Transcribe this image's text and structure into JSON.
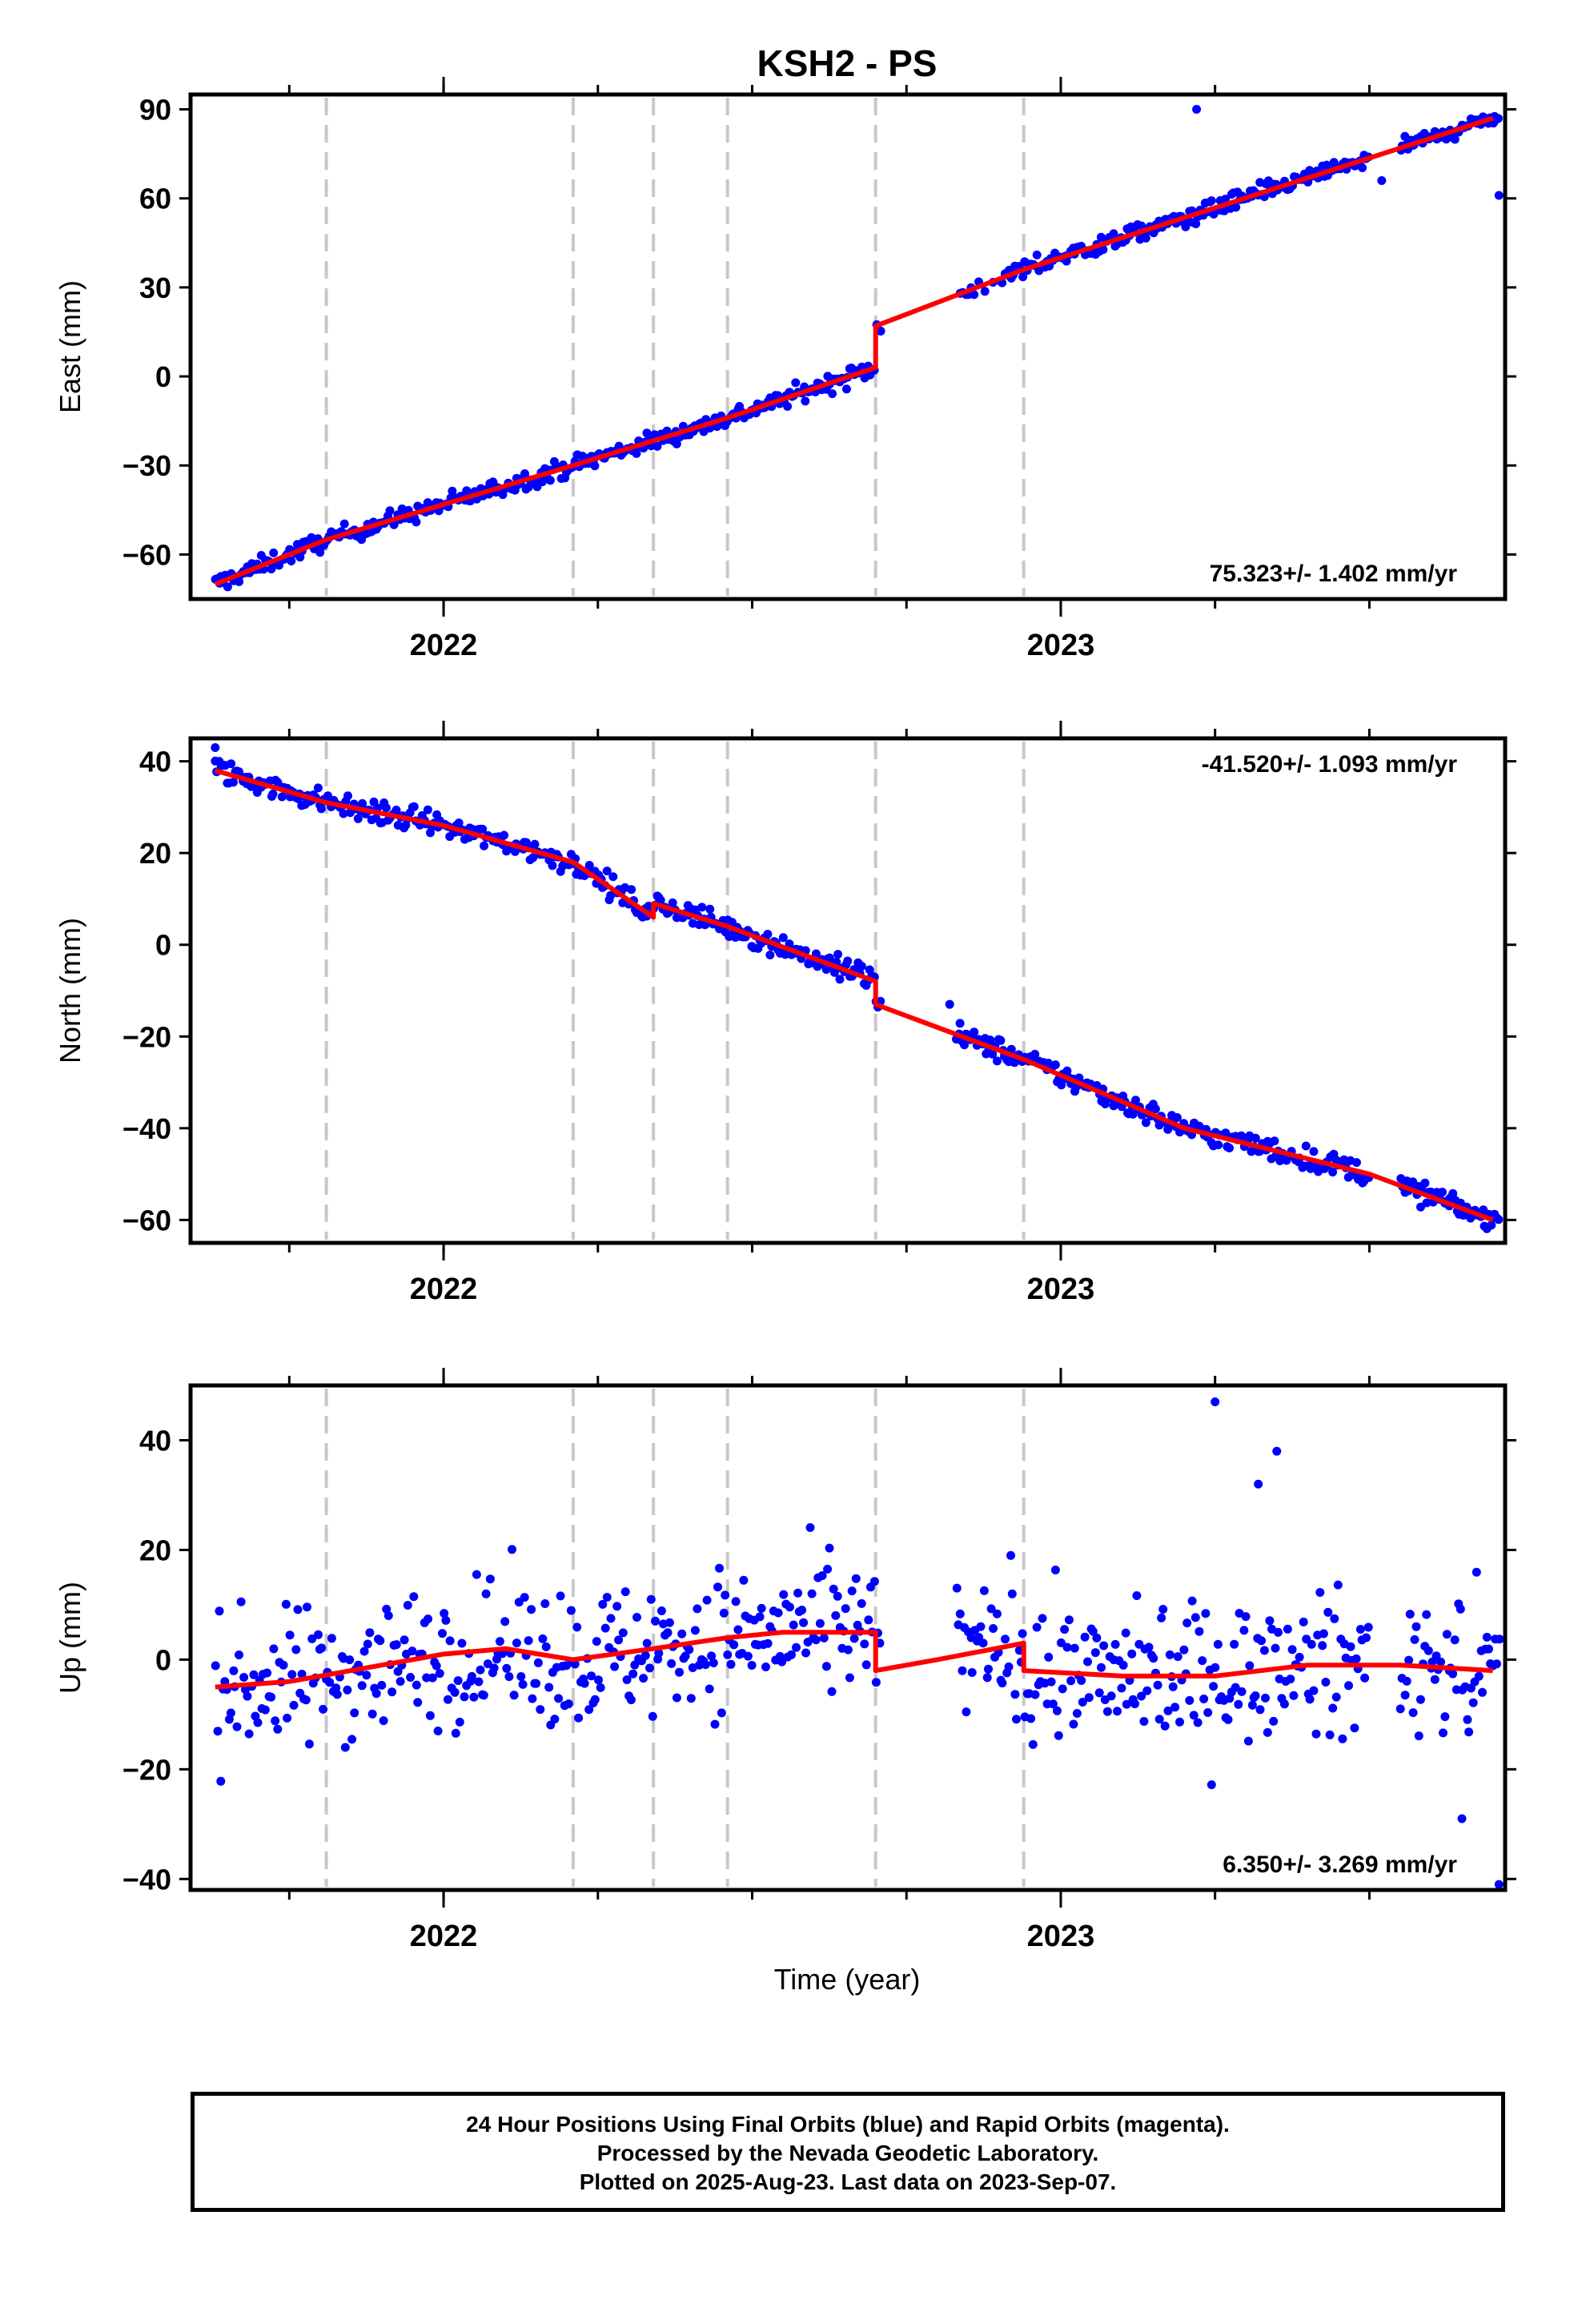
{
  "title": "KSH2 - PS",
  "xaxis_label": "Time (year)",
  "colors": {
    "final_orbits": "#0000ff",
    "model_fit": "#ff0000",
    "offset_lines": "#c8c8c8",
    "frame": "#000000"
  },
  "chart_data": [
    {
      "type": "scatter",
      "panel": "east",
      "ylabel": "East (mm)",
      "xlim": [
        2021.59,
        2023.72
      ],
      "ylim": [
        -75,
        95
      ],
      "yticks": [
        -60,
        -30,
        0,
        30,
        60,
        90
      ],
      "xtick_labels": [
        "2022",
        "2023"
      ],
      "xticks": [
        2022,
        2023
      ],
      "offset_epochs": [
        2021.81,
        2022.21,
        2022.34,
        2022.46,
        2022.7,
        2022.94
      ],
      "rate_label": "75.323+/- 1.402 mm/yr",
      "rate_label_position": "bottom-right",
      "model_fit": [
        [
          2021.63,
          -70
        ],
        [
          2021.81,
          -55
        ],
        [
          2022.21,
          -30
        ],
        [
          2022.46,
          -14
        ],
        [
          2022.7,
          3
        ],
        [
          2022.7,
          17
        ],
        [
          2022.94,
          36
        ],
        [
          2023.7,
          87
        ]
      ],
      "outliers": [
        [
          2023.22,
          90
        ],
        [
          2023.52,
          66
        ],
        [
          2023.71,
          61
        ]
      ],
      "series": [
        {
          "values": [
            [
              2021.63,
              -69
            ],
            [
              2021.7,
              -64
            ],
            [
              2021.76,
              -62
            ],
            [
              2021.83,
              -54
            ],
            [
              2021.9,
              -49
            ],
            [
              2022.0,
              -41
            ],
            [
              2022.1,
              -34
            ],
            [
              2022.2,
              -28
            ],
            [
              2022.3,
              -21
            ],
            [
              2022.4,
              -16
            ],
            [
              2022.46,
              -12
            ],
            [
              2022.52,
              -3
            ],
            [
              2022.6,
              5
            ],
            [
              2022.68,
              13
            ],
            [
              2022.84,
              27
            ],
            [
              2022.92,
              36
            ],
            [
              2023.0,
              39
            ],
            [
              2023.1,
              45
            ],
            [
              2023.2,
              53
            ],
            [
              2023.3,
              59
            ],
            [
              2023.4,
              68
            ],
            [
              2023.5,
              74
            ],
            [
              2023.6,
              81
            ],
            [
              2023.7,
              89
            ]
          ]
        }
      ]
    },
    {
      "type": "scatter",
      "panel": "north",
      "ylabel": "North (mm)",
      "xlim": [
        2021.59,
        2023.72
      ],
      "ylim": [
        -65,
        45
      ],
      "yticks": [
        -60,
        -40,
        -20,
        0,
        20,
        40
      ],
      "xtick_labels": [
        "2022",
        "2023"
      ],
      "xticks": [
        2022,
        2023
      ],
      "offset_epochs": [
        2021.81,
        2022.21,
        2022.34,
        2022.46,
        2022.7,
        2022.94
      ],
      "rate_label": "-41.520+/- 1.093 mm/yr",
      "rate_label_position": "top-right",
      "model_fit": [
        [
          2021.63,
          38
        ],
        [
          2021.81,
          31
        ],
        [
          2022.0,
          26
        ],
        [
          2022.21,
          18
        ],
        [
          2022.34,
          6
        ],
        [
          2022.34,
          9
        ],
        [
          2022.46,
          4
        ],
        [
          2022.7,
          -8
        ],
        [
          2022.7,
          -13
        ],
        [
          2022.84,
          -20
        ],
        [
          2022.94,
          -25
        ],
        [
          2023.2,
          -40
        ],
        [
          2023.5,
          -50
        ],
        [
          2023.7,
          -60
        ]
      ],
      "outliers": [
        [
          2021.63,
          43
        ],
        [
          2022.82,
          -13
        ]
      ],
      "series": [
        {
          "values": [
            [
              2021.63,
              37
            ],
            [
              2021.7,
              35
            ],
            [
              2021.8,
              31
            ],
            [
              2021.9,
              29
            ],
            [
              2022.0,
              26
            ],
            [
              2022.1,
              22
            ],
            [
              2022.2,
              17
            ],
            [
              2022.28,
              12
            ],
            [
              2022.34,
              8
            ],
            [
              2022.4,
              6
            ],
            [
              2022.46,
              3
            ],
            [
              2022.55,
              -2
            ],
            [
              2022.65,
              -6
            ],
            [
              2022.84,
              -19
            ],
            [
              2022.92,
              -24
            ],
            [
              2023.0,
              -27
            ],
            [
              2023.1,
              -33
            ],
            [
              2023.2,
              -40
            ],
            [
              2023.3,
              -44
            ],
            [
              2023.4,
              -47
            ],
            [
              2023.5,
              -50
            ],
            [
              2023.6,
              -55
            ],
            [
              2023.7,
              -60
            ]
          ]
        }
      ]
    },
    {
      "type": "scatter",
      "panel": "up",
      "ylabel": "Up (mm)",
      "xlim": [
        2021.59,
        2023.72
      ],
      "ylim": [
        -42,
        50
      ],
      "yticks": [
        -40,
        -20,
        0,
        20,
        40
      ],
      "xtick_labels": [
        "2022",
        "2023"
      ],
      "xticks": [
        2022,
        2023
      ],
      "offset_epochs": [
        2021.81,
        2022.21,
        2022.34,
        2022.46,
        2022.7,
        2022.94
      ],
      "rate_label": "6.350+/- 3.269 mm/yr",
      "rate_label_position": "bottom-right",
      "model_fit": [
        [
          2021.63,
          -5
        ],
        [
          2021.75,
          -4
        ],
        [
          2021.9,
          -1
        ],
        [
          2022.0,
          1
        ],
        [
          2022.1,
          2
        ],
        [
          2022.21,
          0
        ],
        [
          2022.34,
          2
        ],
        [
          2022.46,
          4
        ],
        [
          2022.55,
          5
        ],
        [
          2022.7,
          5
        ],
        [
          2022.7,
          -2
        ],
        [
          2022.8,
          0
        ],
        [
          2022.94,
          3
        ],
        [
          2022.94,
          -2
        ],
        [
          2023.1,
          -3
        ],
        [
          2023.25,
          -3
        ],
        [
          2023.4,
          -1
        ],
        [
          2023.55,
          -1
        ],
        [
          2023.7,
          -2
        ]
      ],
      "outliers": [
        [
          2023.25,
          47
        ],
        [
          2023.35,
          38
        ],
        [
          2023.32,
          32
        ],
        [
          2023.71,
          -41
        ],
        [
          2023.65,
          -29
        ]
      ],
      "series": [
        {
          "values": [
            [
              2021.65,
              -4
            ],
            [
              2021.72,
              -10
            ],
            [
              2021.8,
              5
            ],
            [
              2021.88,
              -3
            ],
            [
              2021.95,
              2
            ],
            [
              2022.0,
              8
            ],
            [
              2022.08,
              -2
            ],
            [
              2022.15,
              4
            ],
            [
              2022.25,
              -6
            ],
            [
              2022.32,
              3
            ],
            [
              2022.4,
              9
            ],
            [
              2022.48,
              2
            ],
            [
              2022.55,
              12
            ],
            [
              2022.62,
              -5
            ],
            [
              2022.68,
              6
            ],
            [
              2022.82,
              -8
            ],
            [
              2022.88,
              1
            ],
            [
              2022.98,
              -6
            ],
            [
              2023.05,
              -2
            ],
            [
              2023.12,
              -9
            ],
            [
              2023.2,
              1
            ],
            [
              2023.28,
              -5
            ],
            [
              2023.36,
              3
            ],
            [
              2023.44,
              -7
            ],
            [
              2023.52,
              2
            ],
            [
              2023.62,
              -4
            ],
            [
              2023.7,
              6
            ]
          ]
        }
      ]
    }
  ],
  "footer": {
    "line1": "24 Hour Positions Using Final Orbits (blue) and Rapid Orbits (magenta).",
    "line2": "Processed by the Nevada Geodetic Laboratory.",
    "line3": "Plotted on 2025-Aug-23. Last data on 2023-Sep-07."
  }
}
